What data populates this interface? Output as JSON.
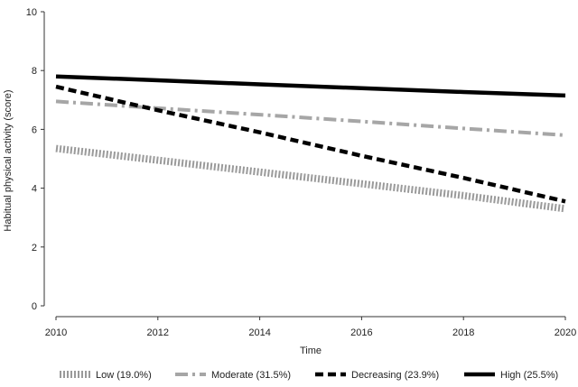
{
  "chart_data": {
    "type": "line",
    "xlabel": "Time",
    "ylabel": "Habitual physical activity (score)",
    "xlim": [
      2010,
      2020
    ],
    "ylim": [
      0,
      10
    ],
    "x_ticks": [
      2010,
      2012,
      2014,
      2016,
      2018,
      2020
    ],
    "y_ticks": [
      0,
      2,
      4,
      6,
      8,
      10
    ],
    "grid": false,
    "legend_position": "bottom",
    "x": [
      2010,
      2012,
      2014,
      2016,
      2018,
      2020
    ],
    "series": [
      {
        "name": "Low (19.0%)",
        "values": [
          5.35,
          4.95,
          4.55,
          4.15,
          3.75,
          3.3
        ],
        "color": "#9a9a9a",
        "style": "hatched"
      },
      {
        "name": "Moderate (31.5%)",
        "values": [
          6.95,
          6.72,
          6.5,
          6.27,
          6.03,
          5.8
        ],
        "color": "#a6a6a6",
        "style": "dashdot"
      },
      {
        "name": "Decreasing (23.9%)",
        "values": [
          7.45,
          6.65,
          5.9,
          5.1,
          4.35,
          3.55
        ],
        "color": "#000000",
        "style": "dashed"
      },
      {
        "name": "High (25.5%)",
        "values": [
          7.8,
          7.67,
          7.53,
          7.4,
          7.27,
          7.15
        ],
        "color": "#000000",
        "style": "solid"
      }
    ]
  }
}
